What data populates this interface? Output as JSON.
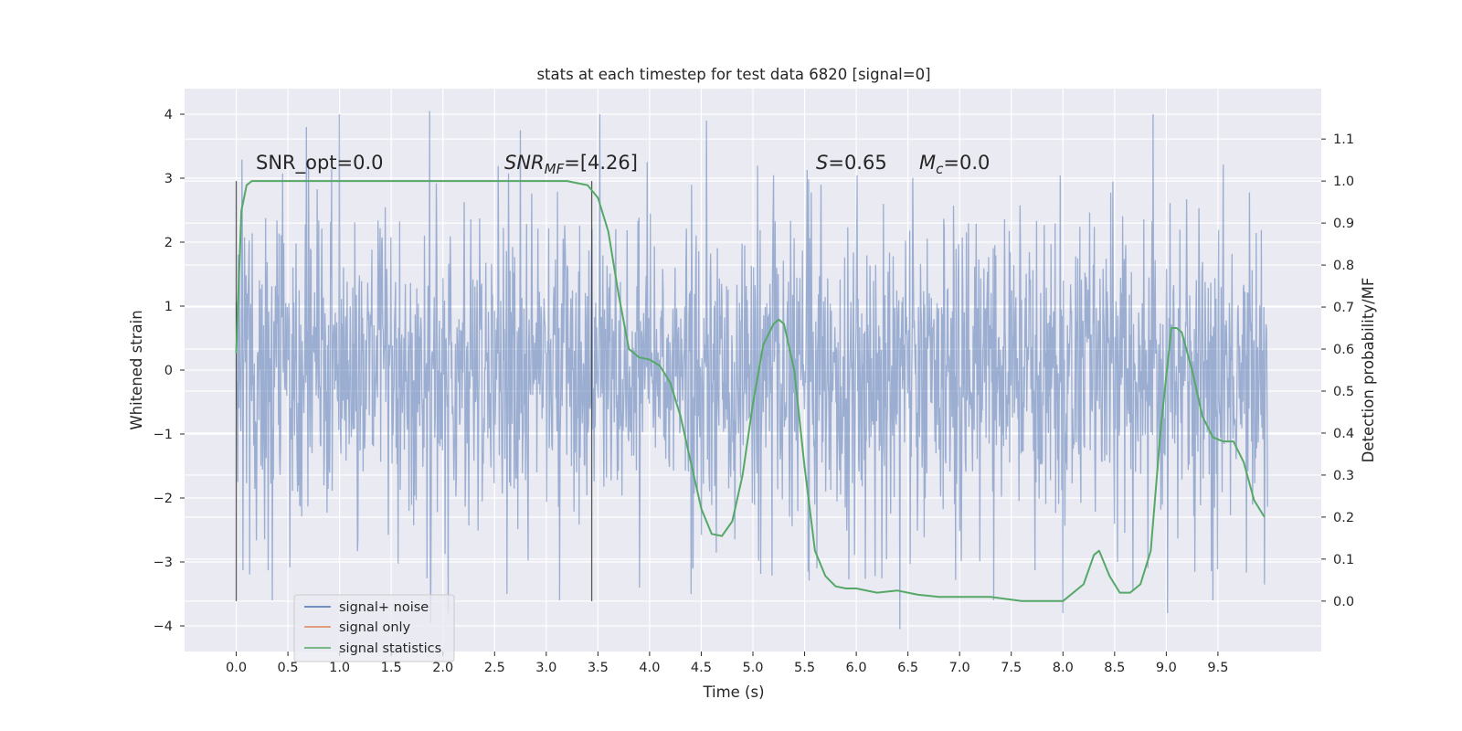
{
  "chart_data": {
    "type": "line",
    "title": "stats at each timestep for test data 6820 [signal=0]",
    "xlabel": "Time (s)",
    "ylabel": "Whitened strain",
    "ylabel_right": "Detection probability/MF",
    "xlim": [
      -0.5,
      10.5
    ],
    "ylim_left": [
      -4.4,
      4.4
    ],
    "ylim_right": [
      -0.12,
      1.22
    ],
    "grid": true,
    "background": "#eaeaf2",
    "x_ticks": [
      "0.0",
      "0.5",
      "1.0",
      "1.5",
      "2.0",
      "2.5",
      "3.0",
      "3.5",
      "4.0",
      "4.5",
      "5.0",
      "5.5",
      "6.0",
      "6.5",
      "7.0",
      "7.5",
      "8.0",
      "8.5",
      "9.0",
      "9.5"
    ],
    "y_ticks_left": [
      "−4",
      "−3",
      "−2",
      "−1",
      "0",
      "1",
      "2",
      "3",
      "4"
    ],
    "y_ticks_right": [
      "0.0",
      "0.1",
      "0.2",
      "0.3",
      "0.4",
      "0.5",
      "0.6",
      "0.7",
      "0.8",
      "0.9",
      "1.0",
      "1.1"
    ],
    "legend_placement": "lower-left",
    "legend": [
      {
        "label": "signal+ noise",
        "color": "#4c72b0"
      },
      {
        "label": "signal only",
        "color": "#dd8452"
      },
      {
        "label": "signal statistics",
        "color": "#55a868"
      }
    ],
    "annotations": {
      "snr_opt": "SNR_opt=0.0",
      "snr_mf_sym": "SNR",
      "snr_mf_sub": "MF",
      "snr_mf_val": "=[4.26]",
      "s_sym": "S",
      "s_val": "=0.65",
      "mc_sym": "M",
      "mc_sub": "c",
      "mc_val": "=0.0"
    },
    "markers": {
      "vertical_lines_x": [
        0.0,
        3.44
      ],
      "vertical_lines_range_right": [
        0.0,
        1.0
      ]
    },
    "series": [
      {
        "name": "signal+ noise",
        "color": "#4c72b0",
        "description_range": [
          -4.05,
          4.05
        ],
        "x_range": [
          0.0,
          9.98
        ],
        "typical_envelope": [
          -2.3,
          2.4
        ],
        "peaks": [
          {
            "x": 1.0,
            "y": 4.0
          },
          {
            "x": 1.87,
            "y": 4.05
          },
          {
            "x": 3.52,
            "y": 4.0
          },
          {
            "x": 4.55,
            "y": 3.9
          },
          {
            "x": 8.87,
            "y": 4.0
          },
          {
            "x": 0.68,
            "y": 3.8
          },
          {
            "x": 2.75,
            "y": 3.75
          },
          {
            "x": 6.42,
            "y": -4.05
          },
          {
            "x": 1.88,
            "y": -3.95
          },
          {
            "x": 8.0,
            "y": -3.8
          },
          {
            "x": 9.01,
            "y": -3.8
          },
          {
            "x": 2.05,
            "y": -3.8
          },
          {
            "x": 0.35,
            "y": -3.6
          },
          {
            "x": 2.62,
            "y": -3.5
          },
          {
            "x": 3.13,
            "y": -3.6
          },
          {
            "x": 3.9,
            "y": -3.4
          },
          {
            "x": 4.4,
            "y": -3.5
          },
          {
            "x": 7.33,
            "y": -3.6
          },
          {
            "x": 9.45,
            "y": -3.6
          },
          {
            "x": 9.95,
            "y": -3.35
          },
          {
            "x": 8.68,
            "y": -3.45
          },
          {
            "x": 5.62,
            "y": -3.1
          }
        ]
      },
      {
        "name": "signal only",
        "color": "#dd8452",
        "values": []
      },
      {
        "name": "signal statistics",
        "color": "#55a868",
        "axis": "right",
        "x": [
          0.0,
          0.05,
          0.1,
          0.15,
          0.2,
          0.3,
          0.5,
          1.0,
          2.0,
          2.5,
          3.0,
          3.2,
          3.3,
          3.4,
          3.5,
          3.6,
          3.7,
          3.8,
          3.9,
          4.0,
          4.1,
          4.2,
          4.3,
          4.4,
          4.5,
          4.6,
          4.7,
          4.8,
          4.9,
          5.0,
          5.1,
          5.2,
          5.25,
          5.3,
          5.4,
          5.5,
          5.6,
          5.7,
          5.8,
          5.9,
          6.0,
          6.2,
          6.4,
          6.5,
          6.6,
          6.8,
          7.0,
          7.3,
          7.6,
          8.0,
          8.2,
          8.3,
          8.35,
          8.45,
          8.55,
          8.65,
          8.75,
          8.85,
          8.95,
          9.05,
          9.1,
          9.15,
          9.25,
          9.35,
          9.45,
          9.55,
          9.65,
          9.75,
          9.85,
          9.95
        ],
        "values": [
          0.59,
          0.93,
          0.99,
          1.0,
          1.0,
          1.0,
          1.0,
          1.0,
          1.0,
          1.0,
          1.0,
          1.0,
          0.995,
          0.99,
          0.96,
          0.88,
          0.73,
          0.6,
          0.58,
          0.575,
          0.56,
          0.52,
          0.44,
          0.33,
          0.22,
          0.16,
          0.155,
          0.19,
          0.3,
          0.47,
          0.61,
          0.66,
          0.67,
          0.66,
          0.55,
          0.32,
          0.12,
          0.06,
          0.035,
          0.03,
          0.03,
          0.02,
          0.025,
          0.02,
          0.015,
          0.01,
          0.01,
          0.01,
          0.0,
          0.0,
          0.04,
          0.11,
          0.12,
          0.06,
          0.02,
          0.02,
          0.04,
          0.12,
          0.42,
          0.65,
          0.65,
          0.64,
          0.55,
          0.44,
          0.39,
          0.38,
          0.38,
          0.33,
          0.24,
          0.2
        ]
      }
    ]
  }
}
